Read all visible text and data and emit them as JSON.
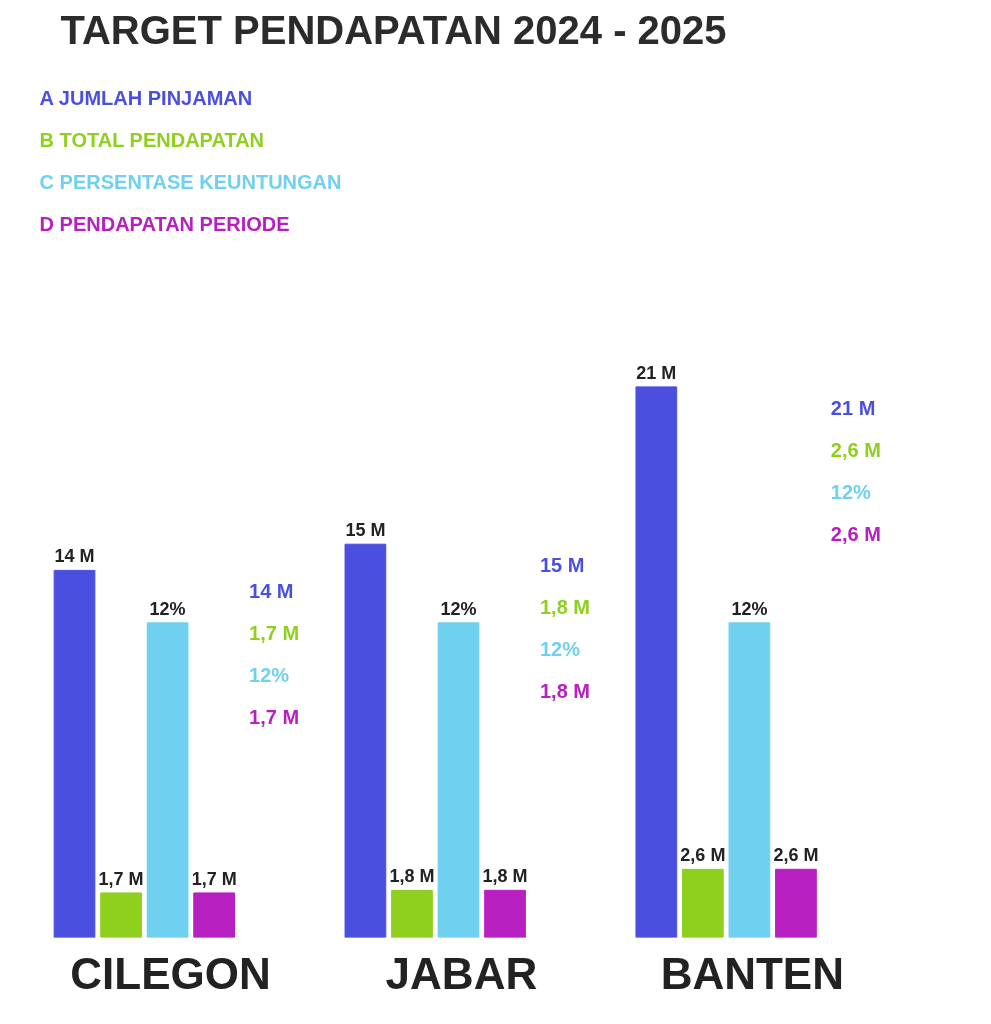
{
  "chart_data": {
    "type": "bar",
    "title": "TARGET PENDAPATAN 2024 - 2025",
    "categories": [
      "CILEGON",
      "JABAR",
      "BANTEN"
    ],
    "series": [
      {
        "name": "A JUMLAH PINJAMAN",
        "color": "#4b4fe0",
        "values": [
          14,
          15,
          21
        ],
        "value_labels": [
          "14 M",
          "15 M",
          "21 M"
        ]
      },
      {
        "name": "B TOTAL PENDAPATAN",
        "color": "#8fd01e",
        "values": [
          1.7,
          1.8,
          2.6
        ],
        "value_labels": [
          "1,7 M",
          "1,8 M",
          "2,6 M"
        ]
      },
      {
        "name": "C PERSENTASE KEUNTUNGAN",
        "color": "#6fd0f0",
        "values": [
          12,
          12,
          12
        ],
        "value_labels": [
          "12%",
          "12%",
          "12%"
        ]
      },
      {
        "name": "D PENDAPATAN PERIODE",
        "color": "#b81fc0",
        "values": [
          1.7,
          1.8,
          2.6
        ],
        "value_labels": [
          "1,7 M",
          "1,8 M",
          "2,6 M"
        ]
      }
    ],
    "annotations": [
      "14 M",
      "1,7 M",
      "12%",
      "1,7 M",
      "15 M",
      "1,8 M",
      "12%",
      "1,8 M",
      "21 M",
      "2,6 M",
      "12%",
      "2,6 M"
    ],
    "grid": false,
    "legend": "top left",
    "tick_labels": "x"
  }
}
